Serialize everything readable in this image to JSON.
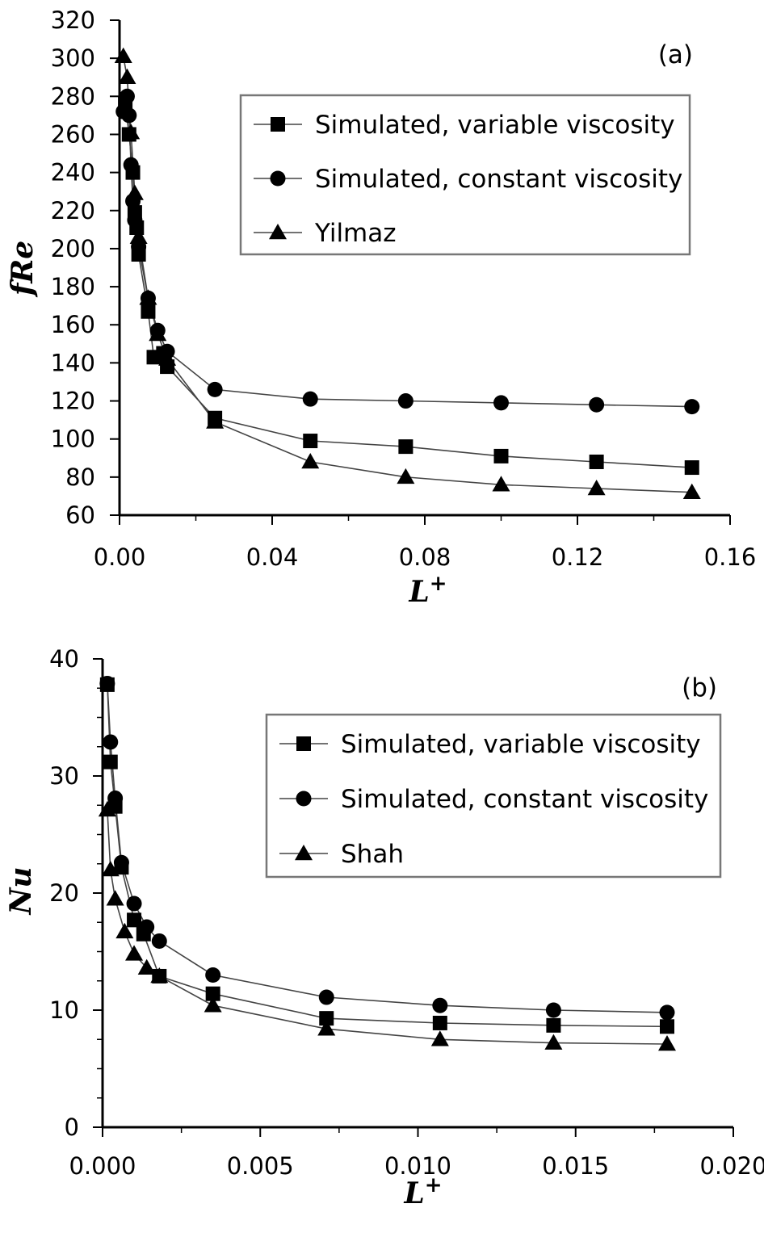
{
  "chart_data": [
    {
      "type": "line",
      "panel_label": "(a)",
      "xlabel": "L+",
      "ylabel": "fRe",
      "xlim": [
        0,
        0.16
      ],
      "ylim": [
        60,
        320
      ],
      "xticks": [
        "0.00",
        "0.04",
        "0.08",
        "0.12",
        "0.16"
      ],
      "yticks": [
        "60",
        "80",
        "100",
        "120",
        "140",
        "160",
        "180",
        "200",
        "220",
        "240",
        "260",
        "280",
        "300",
        "320"
      ],
      "legend_position": "top-right",
      "series": [
        {
          "name": "Simulated, variable viscosity",
          "marker": "square",
          "x": [
            0.0015,
            0.0025,
            0.0035,
            0.004,
            0.0045,
            0.005,
            0.0075,
            0.009,
            0.0115,
            0.0125,
            0.025,
            0.05,
            0.075,
            0.1,
            0.125,
            0.15
          ],
          "y": [
            276,
            260,
            240,
            219,
            211,
            197,
            167,
            143,
            145,
            138,
            111,
            99,
            96,
            91,
            88,
            85
          ]
        },
        {
          "name": "Simulated, constant viscosity",
          "marker": "circle",
          "x": [
            0.001,
            0.002,
            0.0025,
            0.003,
            0.0035,
            0.004,
            0.005,
            0.0075,
            0.01,
            0.0125,
            0.025,
            0.05,
            0.075,
            0.1,
            0.125,
            0.15
          ],
          "y": [
            272,
            280,
            270,
            244,
            225,
            215,
            201,
            174,
            157,
            146,
            126,
            121,
            120,
            119,
            118,
            117
          ]
        },
        {
          "name": "Yilmaz",
          "marker": "triangle",
          "x": [
            0.001,
            0.002,
            0.003,
            0.004,
            0.005,
            0.0075,
            0.01,
            0.0125,
            0.025,
            0.05,
            0.075,
            0.1,
            0.125,
            0.15
          ],
          "y": [
            301,
            290,
            261,
            229,
            206,
            174,
            155,
            142,
            109,
            88,
            80,
            76,
            74,
            72
          ]
        }
      ]
    },
    {
      "type": "line",
      "panel_label": "(b)",
      "xlabel": "L+",
      "ylabel": "Nu",
      "xlim": [
        0,
        0.02
      ],
      "ylim": [
        0,
        40
      ],
      "xticks": [
        "0.000",
        "0.005",
        "0.010",
        "0.015",
        "0.020"
      ],
      "yticks": [
        "0",
        "10",
        "20",
        "30",
        "40"
      ],
      "legend_position": "top-right",
      "series": [
        {
          "name": "Simulated, variable viscosity",
          "marker": "square",
          "x": [
            0.00015,
            0.00025,
            0.0004,
            0.0006,
            0.001,
            0.0013,
            0.0018,
            0.0035,
            0.0071,
            0.0107,
            0.0143,
            0.0179
          ],
          "y": [
            37.8,
            31.2,
            27.4,
            22.2,
            17.7,
            16.5,
            12.9,
            11.4,
            9.3,
            8.9,
            8.7,
            8.6
          ]
        },
        {
          "name": "Simulated, constant viscosity",
          "marker": "circle",
          "x": [
            0.00015,
            0.00025,
            0.0004,
            0.0006,
            0.001,
            0.0014,
            0.0018,
            0.0035,
            0.0071,
            0.0107,
            0.0143,
            0.0179
          ],
          "y": [
            37.9,
            32.9,
            28.1,
            22.6,
            19.1,
            17.1,
            15.9,
            13.0,
            11.1,
            10.4,
            10.0,
            9.8
          ]
        },
        {
          "name": "Shah",
          "marker": "triangle",
          "x": [
            0.00015,
            0.00025,
            0.0004,
            0.0007,
            0.001,
            0.0014,
            0.0018,
            0.0035,
            0.0071,
            0.0107,
            0.0143,
            0.0179
          ],
          "y": [
            27.1,
            22.0,
            19.5,
            16.7,
            14.8,
            13.6,
            12.9,
            10.4,
            8.4,
            7.5,
            7.2,
            7.1
          ]
        }
      ]
    }
  ]
}
